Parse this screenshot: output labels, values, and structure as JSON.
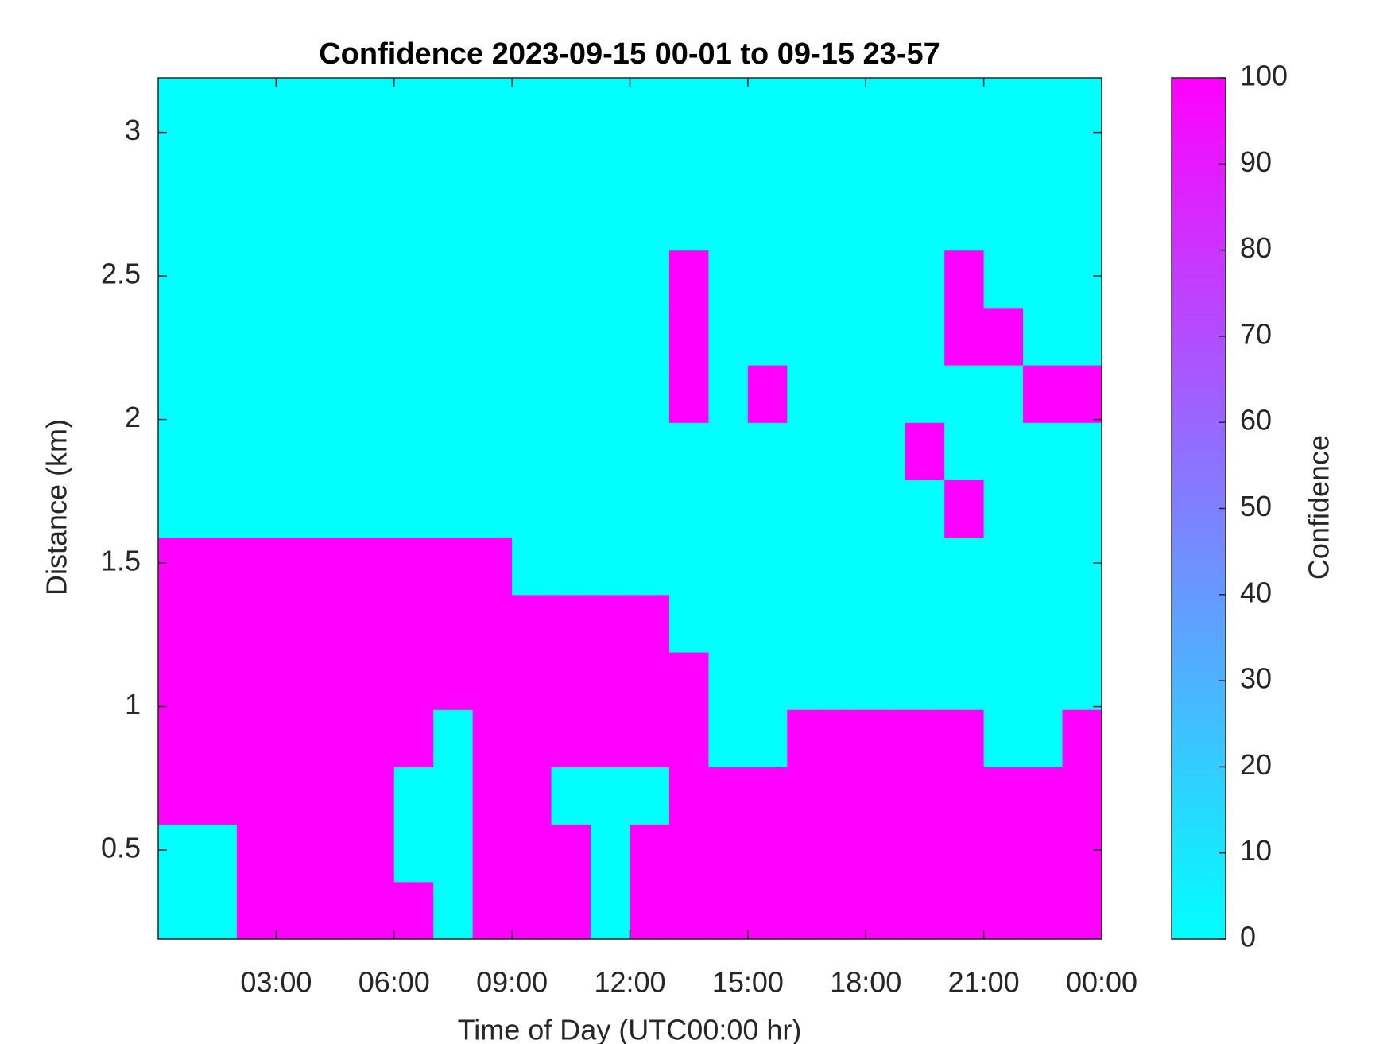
{
  "chart_data": {
    "type": "heatmap",
    "title": "Confidence 2023-09-15 00-01 to 09-15 23-57",
    "x_label": "Time of Day (UTC00:00 hr)",
    "y_label": "Distance (km)",
    "colorbar_label": "Confidence",
    "colormap": [
      "#00ffff",
      "#ff00ff"
    ],
    "clim": [
      0,
      100
    ],
    "cticks": [
      0,
      10,
      20,
      30,
      40,
      50,
      60,
      70,
      80,
      90,
      100
    ],
    "xlim": [
      0,
      24
    ],
    "xticks": [
      {
        "value": 3,
        "label": "03:00"
      },
      {
        "value": 6,
        "label": "06:00"
      },
      {
        "value": 9,
        "label": "09:00"
      },
      {
        "value": 12,
        "label": "12:00"
      },
      {
        "value": 15,
        "label": "15:00"
      },
      {
        "value": 18,
        "label": "18:00"
      },
      {
        "value": 21,
        "label": "21:00"
      },
      {
        "value": 24,
        "label": "00:00"
      }
    ],
    "ylim": [
      0.19,
      3.19
    ],
    "yticks": [
      0.5,
      1,
      1.5,
      2,
      2.5,
      3
    ],
    "x": [
      0.5,
      1.5,
      2.5,
      3.5,
      4.5,
      5.5,
      6.5,
      7.5,
      8.5,
      9.5,
      10.5,
      11.5,
      12.5,
      13.5,
      14.5,
      15.5,
      16.5,
      17.5,
      18.5,
      19.5,
      20.5,
      21.5,
      22.5,
      23.5
    ],
    "y": [
      0.29,
      0.49,
      0.69,
      0.89,
      1.09,
      1.29,
      1.49,
      1.69,
      1.89,
      2.09,
      2.29,
      2.49,
      2.69,
      2.89,
      3.09
    ],
    "z": [
      [
        0,
        0,
        100,
        100,
        100,
        100,
        100,
        0,
        100,
        100,
        100,
        0,
        100,
        100,
        100,
        100,
        100,
        100,
        100,
        100,
        100,
        100,
        100,
        100
      ],
      [
        0,
        0,
        100,
        100,
        100,
        100,
        0,
        0,
        100,
        100,
        100,
        0,
        100,
        100,
        100,
        100,
        100,
        100,
        100,
        100,
        100,
        100,
        100,
        100
      ],
      [
        100,
        100,
        100,
        100,
        100,
        100,
        0,
        0,
        100,
        100,
        0,
        0,
        0,
        100,
        100,
        100,
        100,
        100,
        100,
        100,
        100,
        100,
        100,
        100
      ],
      [
        100,
        100,
        100,
        100,
        100,
        100,
        100,
        0,
        100,
        100,
        100,
        100,
        100,
        100,
        0,
        0,
        100,
        100,
        100,
        100,
        100,
        0,
        0,
        100
      ],
      [
        100,
        100,
        100,
        100,
        100,
        100,
        100,
        100,
        100,
        100,
        100,
        100,
        100,
        100,
        0,
        0,
        0,
        0,
        0,
        0,
        0,
        0,
        0,
        0
      ],
      [
        100,
        100,
        100,
        100,
        100,
        100,
        100,
        100,
        100,
        100,
        100,
        100,
        100,
        0,
        0,
        0,
        0,
        0,
        0,
        0,
        0,
        0,
        0,
        0
      ],
      [
        100,
        100,
        100,
        100,
        100,
        100,
        100,
        100,
        100,
        0,
        0,
        0,
        0,
        0,
        0,
        0,
        0,
        0,
        0,
        0,
        0,
        0,
        0,
        0
      ],
      [
        0,
        0,
        0,
        0,
        0,
        0,
        0,
        0,
        0,
        0,
        0,
        0,
        0,
        0,
        0,
        0,
        0,
        0,
        0,
        0,
        100,
        0,
        0,
        0
      ],
      [
        0,
        0,
        0,
        0,
        0,
        0,
        0,
        0,
        0,
        0,
        0,
        0,
        0,
        0,
        0,
        0,
        0,
        0,
        0,
        100,
        0,
        0,
        0,
        0
      ],
      [
        0,
        0,
        0,
        0,
        0,
        0,
        0,
        0,
        0,
        0,
        0,
        0,
        0,
        100,
        0,
        100,
        0,
        0,
        0,
        0,
        0,
        0,
        100,
        100
      ],
      [
        0,
        0,
        0,
        0,
        0,
        0,
        0,
        0,
        0,
        0,
        0,
        0,
        0,
        100,
        0,
        0,
        0,
        0,
        0,
        0,
        100,
        100,
        0,
        0
      ],
      [
        0,
        0,
        0,
        0,
        0,
        0,
        0,
        0,
        0,
        0,
        0,
        0,
        0,
        100,
        0,
        0,
        0,
        0,
        0,
        0,
        100,
        0,
        0,
        0
      ],
      [
        0,
        0,
        0,
        0,
        0,
        0,
        0,
        0,
        0,
        0,
        0,
        0,
        0,
        0,
        0,
        0,
        0,
        0,
        0,
        0,
        0,
        0,
        0,
        0
      ],
      [
        0,
        0,
        0,
        0,
        0,
        0,
        0,
        0,
        0,
        0,
        0,
        0,
        0,
        0,
        0,
        0,
        0,
        0,
        0,
        0,
        0,
        0,
        0,
        0
      ],
      [
        0,
        0,
        0,
        0,
        0,
        0,
        0,
        0,
        0,
        0,
        0,
        0,
        0,
        0,
        0,
        0,
        0,
        0,
        0,
        0,
        0,
        0,
        0,
        0
      ]
    ]
  }
}
